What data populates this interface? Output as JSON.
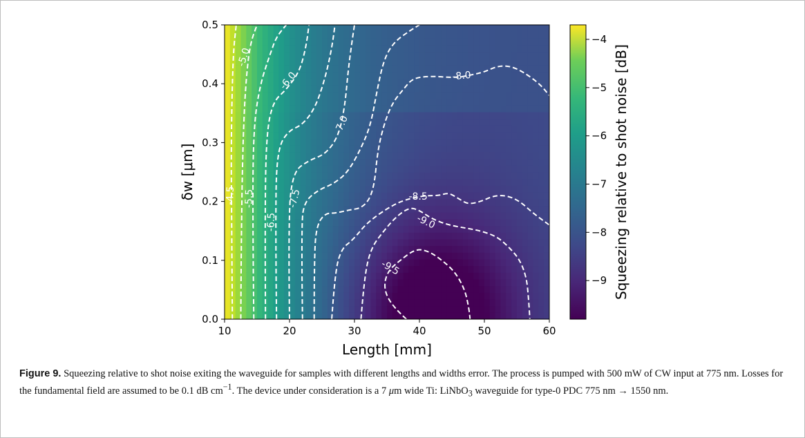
{
  "chart_data": {
    "type": "heatmap",
    "xlabel": "Length [mm]",
    "ylabel": "δw [μm]",
    "xlim": [
      10,
      60
    ],
    "ylim": [
      0.0,
      0.5
    ],
    "x_ticks": [
      "10",
      "20",
      "30",
      "40",
      "50",
      "60"
    ],
    "y_ticks": [
      "0.0",
      "0.1",
      "0.2",
      "0.3",
      "0.4",
      "0.5"
    ],
    "colorbar": {
      "label": "Squeezing relative to shot noise [dB]",
      "range": [
        -9.8,
        -3.7
      ],
      "ticks": [
        "−4",
        "−5",
        "−6",
        "−7",
        "−8",
        "−9"
      ],
      "colormap": "viridis"
    },
    "contour_levels": [
      {
        "level": "-4.5",
        "points": [
          [
            11.2,
            0.0
          ],
          [
            11.1,
            0.15
          ],
          [
            11.0,
            0.3
          ],
          [
            11.3,
            0.45
          ],
          [
            11.8,
            0.5
          ]
        ]
      },
      {
        "level": "-5.0",
        "points": [
          [
            12.5,
            0.0
          ],
          [
            12.6,
            0.18
          ],
          [
            12.9,
            0.33
          ],
          [
            13.4,
            0.42
          ],
          [
            14.0,
            0.47
          ],
          [
            15.0,
            0.5
          ]
        ]
      },
      {
        "level": "-5.5",
        "points": [
          [
            14.5,
            0.0
          ],
          [
            14.3,
            0.2
          ],
          [
            14.5,
            0.33
          ],
          [
            15.5,
            0.4
          ],
          [
            17.0,
            0.45
          ],
          [
            18.0,
            0.48
          ],
          [
            19.5,
            0.5
          ]
        ]
      },
      {
        "level": "-6.0",
        "points": [
          [
            16.3,
            0.0
          ],
          [
            16.2,
            0.2
          ],
          [
            16.5,
            0.32
          ],
          [
            17.5,
            0.37
          ],
          [
            19.5,
            0.39
          ],
          [
            21.5,
            0.42
          ],
          [
            22.5,
            0.46
          ],
          [
            23.0,
            0.5
          ]
        ]
      },
      {
        "level": "-6.5",
        "points": [
          [
            18.0,
            0.0
          ],
          [
            17.8,
            0.2
          ],
          [
            18.2,
            0.29
          ],
          [
            19.8,
            0.32
          ],
          [
            22.0,
            0.33
          ],
          [
            24.0,
            0.36
          ],
          [
            25.5,
            0.41
          ],
          [
            26.5,
            0.46
          ],
          [
            27.0,
            0.5
          ]
        ]
      },
      {
        "level": "-7.0",
        "points": [
          [
            20.0,
            0.0
          ],
          [
            19.8,
            0.17
          ],
          [
            20.5,
            0.25
          ],
          [
            23.0,
            0.27
          ],
          [
            25.5,
            0.28
          ],
          [
            27.5,
            0.31
          ],
          [
            28.5,
            0.36
          ],
          [
            29.0,
            0.42
          ],
          [
            29.6,
            0.47
          ],
          [
            30.0,
            0.5
          ]
        ]
      },
      {
        "level": "-7.5",
        "points": [
          [
            22.0,
            0.0
          ],
          [
            21.8,
            0.16
          ],
          [
            22.3,
            0.2
          ],
          [
            24.5,
            0.22
          ],
          [
            26.8,
            0.23
          ],
          [
            29.0,
            0.25
          ],
          [
            31.0,
            0.29
          ],
          [
            32.5,
            0.33
          ],
          [
            33.5,
            0.39
          ],
          [
            34.5,
            0.44
          ],
          [
            36.0,
            0.47
          ],
          [
            38.5,
            0.49
          ],
          [
            40.0,
            0.5
          ]
        ]
      },
      {
        "level": "-8.0",
        "points": [
          [
            23.8,
            0.0
          ],
          [
            23.8,
            0.11
          ],
          [
            24.2,
            0.16
          ],
          [
            25.5,
            0.18
          ],
          [
            27.0,
            0.18
          ],
          [
            29.0,
            0.185
          ],
          [
            31.5,
            0.19
          ],
          [
            33.0,
            0.22
          ],
          [
            33.6,
            0.29
          ],
          [
            34.8,
            0.34
          ],
          [
            36.0,
            0.37
          ],
          [
            37.5,
            0.39
          ],
          [
            39.0,
            0.41
          ],
          [
            42.0,
            0.413
          ],
          [
            45.5,
            0.41
          ],
          [
            48.0,
            0.415
          ],
          [
            50.0,
            0.42
          ],
          [
            52.0,
            0.43
          ],
          [
            54.0,
            0.43
          ],
          [
            56.0,
            0.42
          ],
          [
            58.5,
            0.4
          ],
          [
            60.0,
            0.38
          ]
        ]
      },
      {
        "level": "-8.5",
        "points": [
          [
            26.5,
            0.0
          ],
          [
            27.0,
            0.08
          ],
          [
            28.0,
            0.12
          ],
          [
            29.8,
            0.135
          ],
          [
            32.0,
            0.165
          ],
          [
            36.0,
            0.195
          ],
          [
            38.5,
            0.205
          ],
          [
            41.0,
            0.21
          ],
          [
            43.0,
            0.21
          ],
          [
            44.5,
            0.215
          ],
          [
            46.0,
            0.205
          ],
          [
            47.5,
            0.195
          ],
          [
            49.5,
            0.2
          ],
          [
            51.5,
            0.21
          ],
          [
            53.5,
            0.21
          ],
          [
            55.5,
            0.2
          ],
          [
            57.5,
            0.18
          ],
          [
            60.0,
            0.16
          ]
        ]
      },
      {
        "level": "-9.0",
        "points": [
          [
            31.0,
            0.0
          ],
          [
            31.5,
            0.07
          ],
          [
            32.5,
            0.12
          ],
          [
            34.5,
            0.15
          ],
          [
            36.5,
            0.175
          ],
          [
            38.5,
            0.19
          ],
          [
            40.0,
            0.185
          ],
          [
            42.0,
            0.17
          ],
          [
            44.5,
            0.16
          ],
          [
            47.0,
            0.155
          ],
          [
            49.5,
            0.15
          ],
          [
            52.0,
            0.14
          ],
          [
            54.0,
            0.12
          ],
          [
            55.5,
            0.1
          ],
          [
            56.5,
            0.07
          ],
          [
            56.8,
            0.035
          ],
          [
            57.0,
            0.0
          ]
        ]
      },
      {
        "level": "-9.5",
        "points": [
          [
            38.0,
            0.0
          ],
          [
            36.0,
            0.02
          ],
          [
            34.5,
            0.05
          ],
          [
            35.0,
            0.08
          ],
          [
            37.0,
            0.1
          ],
          [
            39.5,
            0.12
          ],
          [
            41.5,
            0.115
          ],
          [
            43.5,
            0.1
          ],
          [
            45.5,
            0.08
          ],
          [
            47.0,
            0.05
          ],
          [
            47.6,
            0.02
          ],
          [
            47.8,
            0.0
          ]
        ]
      }
    ],
    "contour_labels": [
      {
        "text": "-4.5",
        "x": 10.9,
        "y": 0.21,
        "angle": -88
      },
      {
        "text": "-5.5",
        "x": 13.8,
        "y": 0.205,
        "angle": -88
      },
      {
        "text": "-6.5",
        "x": 17.2,
        "y": 0.165,
        "angle": -88
      },
      {
        "text": "-7.5",
        "x": 20.8,
        "y": 0.205,
        "angle": -76
      },
      {
        "text": "-5.0",
        "x": 13.0,
        "y": 0.445,
        "angle": -72
      },
      {
        "text": "-6.0",
        "x": 19.8,
        "y": 0.405,
        "angle": -50
      },
      {
        "text": "-7.0",
        "x": 28.0,
        "y": 0.33,
        "angle": -66
      },
      {
        "text": "-8.0",
        "x": 46.5,
        "y": 0.413,
        "angle": -5
      },
      {
        "text": "-8.5",
        "x": 39.8,
        "y": 0.208,
        "angle": 0
      },
      {
        "text": "-9.0",
        "x": 41.0,
        "y": 0.165,
        "angle": 26
      },
      {
        "text": "-9.5",
        "x": 35.5,
        "y": 0.087,
        "angle": 30
      }
    ]
  },
  "caption": {
    "label": "Figure 9.",
    "text": "Squeezing relative to shot noise exiting the waveguide for samples with different lengths and widths error. The process is pumped with 500 mW of CW input at 775 nm. Losses for the fundamental field are assumed to be 0.1 dB cm",
    "loss_exponent": "−1",
    "text2": ". The device under consideration is a 7 ",
    "mu": "μ",
    "text3": "m wide Ti: LiNbO",
    "subscript": "3",
    "text4": " waveguide for type-0 PDC 775 nm → 1550 nm."
  }
}
